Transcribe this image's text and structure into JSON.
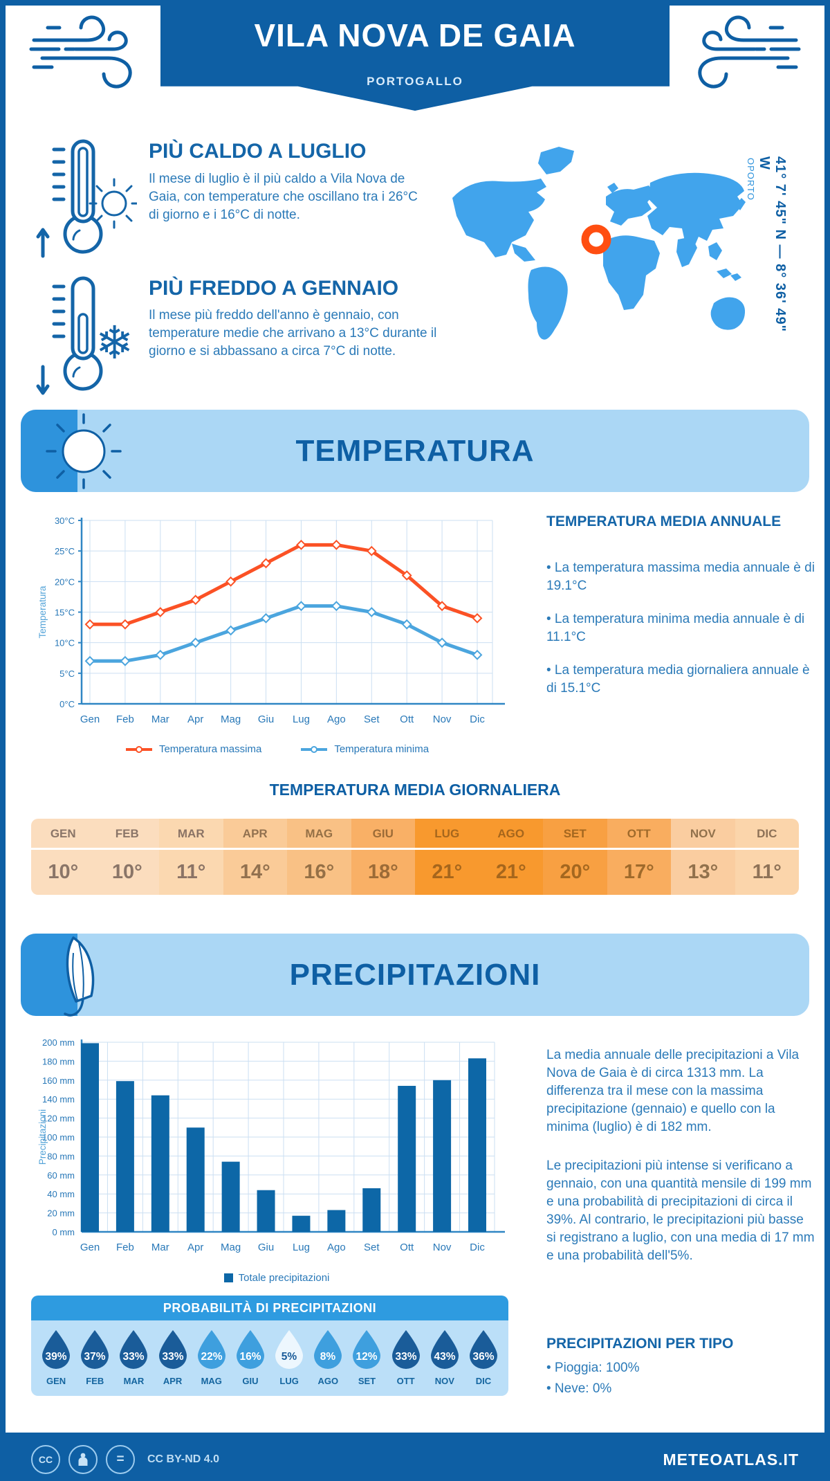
{
  "header": {
    "title": "VILA NOVA DE GAIA",
    "subtitle": "PORTOGALLO"
  },
  "highlights": [
    {
      "title": "PIÙ CALDO A LUGLIO",
      "text": "Il mese di luglio è il più caldo a Vila Nova de Gaia, con temperature che oscillano tra i 26°C di giorno e i 16°C di notte."
    },
    {
      "title": "PIÙ FREDDO A GENNAIO",
      "text": "Il mese più freddo dell'anno è gennaio, con temperature medie che arrivano a 13°C durante il giorno e si abbassano a circa 7°C di notte."
    }
  ],
  "map": {
    "location_label": "OPORTO",
    "coordinates": "41° 7' 45\" N — 8° 36' 49\" W",
    "land_color": "#41A4EC",
    "marker_color": "#FF4E11"
  },
  "sections": {
    "temperature": "TEMPERATURA",
    "precipitation": "PRECIPITAZIONI"
  },
  "chart_data": [
    {
      "type": "line",
      "x": [
        "Gen",
        "Feb",
        "Mar",
        "Apr",
        "Mag",
        "Giu",
        "Lug",
        "Ago",
        "Set",
        "Ott",
        "Nov",
        "Dic"
      ],
      "ylabel": "Temperatura",
      "ylim": [
        0,
        30
      ],
      "ytick_step": 5,
      "ytick_suffix": "°C",
      "grid": true,
      "legend_position": "bottom",
      "series": [
        {
          "name": "Temperatura massima",
          "color": "#FB5125",
          "values": [
            13,
            13,
            15,
            17,
            20,
            23,
            26,
            26,
            25,
            21,
            16,
            14
          ]
        },
        {
          "name": "Temperatura minima",
          "color": "#4BA5DE",
          "values": [
            7,
            7,
            8,
            10,
            12,
            14,
            16,
            16,
            15,
            13,
            10,
            8
          ]
        }
      ]
    },
    {
      "type": "bar",
      "categories": [
        "Gen",
        "Feb",
        "Mar",
        "Apr",
        "Mag",
        "Giu",
        "Lug",
        "Ago",
        "Set",
        "Ott",
        "Nov",
        "Dic"
      ],
      "values": [
        199,
        159,
        144,
        110,
        74,
        44,
        17,
        23,
        46,
        154,
        160,
        183
      ],
      "ylabel": "Precipitazioni",
      "ylim": [
        0,
        200
      ],
      "ytick_step": 20,
      "ytick_suffix": " mm",
      "grid": true,
      "bar_color": "#0D67A7",
      "legend": "Totale precipitazioni"
    }
  ],
  "annual_summary": {
    "title": "TEMPERATURA MEDIA ANNUALE",
    "bullets": [
      "• La temperatura massima media annuale è di 19.1°C",
      "• La temperatura minima media annuale è di 11.1°C",
      "• La temperatura media giornaliera annuale è di 15.1°C"
    ]
  },
  "daily_table": {
    "title": "TEMPERATURA MEDIA GIORNALIERA",
    "months": [
      "GEN",
      "FEB",
      "MAR",
      "APR",
      "MAG",
      "GIU",
      "LUG",
      "AGO",
      "SET",
      "OTT",
      "NOV",
      "DIC"
    ],
    "values": [
      "10°",
      "10°",
      "11°",
      "14°",
      "16°",
      "18°",
      "21°",
      "21°",
      "20°",
      "17°",
      "13°",
      "11°"
    ],
    "cell_colors": [
      "#FBDDBE",
      "#FBDDBE",
      "#FBD8B0",
      "#FACB98",
      "#F9C185",
      "#F9B066",
      "#F8992E",
      "#F8992E",
      "#F8A042",
      "#F9AD5F",
      "#FACDA0",
      "#FBD5AB"
    ],
    "text_colors": [
      "#8A7568",
      "#8A7568",
      "#8A7365",
      "#92714F",
      "#957046",
      "#9C6B37",
      "#A6661C",
      "#A6661C",
      "#A4671F",
      "#9F6A2B",
      "#91714C",
      "#8E7257"
    ]
  },
  "precip_text": {
    "para1": "La media annuale delle precipitazioni a Vila Nova de Gaia è di circa 1313 mm. La differenza tra il mese con la massima precipitazione (gennaio) e quello con la minima (luglio) è di 182 mm.",
    "para2": "Le precipitazioni più intense si verificano a gennaio, con una quantità mensile di 199 mm e una probabilità di precipitazioni di circa il 39%. Al contrario, le precipitazioni più basse si registrano a luglio, con una media di 17 mm e una probabilità dell'5%."
  },
  "probability": {
    "title": "PROBABILITÀ DI PRECIPITAZIONI",
    "months": [
      "GEN",
      "FEB",
      "MAR",
      "APR",
      "MAG",
      "GIU",
      "LUG",
      "AGO",
      "SET",
      "OTT",
      "NOV",
      "DIC"
    ],
    "values": [
      "39%",
      "37%",
      "33%",
      "33%",
      "22%",
      "16%",
      "5%",
      "8%",
      "12%",
      "33%",
      "43%",
      "36%"
    ],
    "drop_colors": [
      "#1A5C99",
      "#1A5C99",
      "#1A5C99",
      "#1A5C99",
      "#3E9FDE",
      "#3E9FDE",
      "#EDF7FE",
      "#3E9FDE",
      "#3E9FDE",
      "#1A5C99",
      "#1A5C99",
      "#1A5C99"
    ],
    "value_colors": [
      "#FFFFFF",
      "#FFFFFF",
      "#FFFFFF",
      "#FFFFFF",
      "#FFFFFF",
      "#FFFFFF",
      "#1A5C99",
      "#FFFFFF",
      "#FFFFFF",
      "#FFFFFF",
      "#FFFFFF",
      "#FFFFFF"
    ]
  },
  "precip_type": {
    "title": "PRECIPITAZIONI PER TIPO",
    "bullets": [
      "• Pioggia: 100%",
      "• Neve: 0%"
    ]
  },
  "footer": {
    "cc_glyph": "CC",
    "nd_glyph": "=",
    "license": "CC BY-ND 4.0",
    "site": "METEOATLAS.IT"
  }
}
